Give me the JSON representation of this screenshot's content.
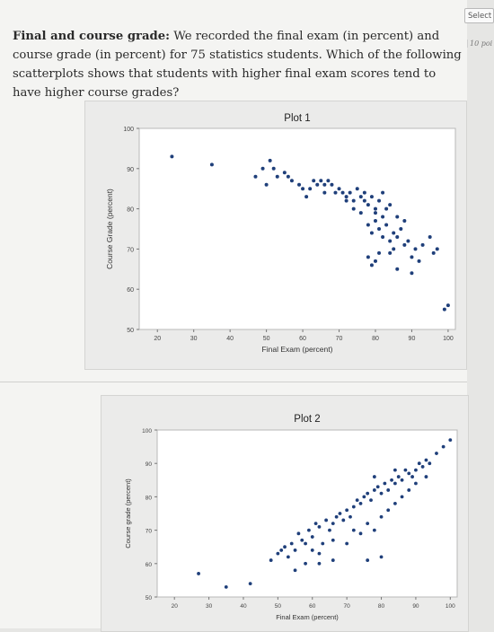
{
  "header": {
    "select_label": "Select",
    "points_label": "10 poi"
  },
  "question": {
    "title": "Final and course grade:",
    "text": "We recorded the final exam (in percent) and course grade (in percent) for 75 statistics students. Which of the following scatterplots shows that students with higher final exam scores tend to have higher course grades?"
  },
  "colors": {
    "point": "#1f3f7a",
    "plot_bg": "#ffffff",
    "panel_bg": "#ebebea"
  },
  "chart_data": [
    {
      "type": "scatter",
      "title": "Plot 1",
      "xlabel": "Final Exam (percent)",
      "ylabel": "Course Grade (percent)",
      "xlim": [
        15,
        102
      ],
      "ylim": [
        50,
        100
      ],
      "xticks": [
        20,
        30,
        40,
        50,
        60,
        70,
        80,
        90,
        100
      ],
      "yticks": [
        50,
        60,
        70,
        80,
        90,
        100
      ],
      "grid": false,
      "points": [
        [
          24,
          93
        ],
        [
          35,
          91
        ],
        [
          47,
          88
        ],
        [
          49,
          90
        ],
        [
          50,
          86
        ],
        [
          51,
          92
        ],
        [
          52,
          90
        ],
        [
          53,
          88
        ],
        [
          55,
          89
        ],
        [
          56,
          88
        ],
        [
          57,
          87
        ],
        [
          59,
          86
        ],
        [
          60,
          85
        ],
        [
          62,
          85
        ],
        [
          63,
          87
        ],
        [
          64,
          86
        ],
        [
          65,
          87
        ],
        [
          66,
          86
        ],
        [
          67,
          87
        ],
        [
          68,
          86
        ],
        [
          70,
          85
        ],
        [
          71,
          84
        ],
        [
          72,
          83
        ],
        [
          73,
          84
        ],
        [
          74,
          82
        ],
        [
          75,
          85
        ],
        [
          76,
          83
        ],
        [
          77,
          84
        ],
        [
          78,
          81
        ],
        [
          79,
          83
        ],
        [
          80,
          80
        ],
        [
          81,
          82
        ],
        [
          82,
          78
        ],
        [
          83,
          80
        ],
        [
          76,
          79
        ],
        [
          78,
          76
        ],
        [
          79,
          74
        ],
        [
          80,
          77
        ],
        [
          81,
          75
        ],
        [
          82,
          73
        ],
        [
          83,
          76
        ],
        [
          84,
          72
        ],
        [
          85,
          74
        ],
        [
          86,
          73
        ],
        [
          87,
          75
        ],
        [
          88,
          71
        ],
        [
          89,
          72
        ],
        [
          90,
          68
        ],
        [
          91,
          70
        ],
        [
          92,
          67
        ],
        [
          85,
          70
        ],
        [
          84,
          69
        ],
        [
          78,
          68
        ],
        [
          79,
          66
        ],
        [
          80,
          67
        ],
        [
          81,
          69
        ],
        [
          86,
          65
        ],
        [
          90,
          64
        ],
        [
          93,
          71
        ],
        [
          95,
          73
        ],
        [
          96,
          69
        ],
        [
          97,
          70
        ],
        [
          99,
          55
        ],
        [
          100,
          56
        ],
        [
          74,
          80
        ],
        [
          72,
          82
        ],
        [
          69,
          84
        ],
        [
          66,
          84
        ],
        [
          61,
          83
        ],
        [
          77,
          82
        ],
        [
          82,
          84
        ],
        [
          86,
          78
        ],
        [
          88,
          77
        ],
        [
          80,
          79
        ],
        [
          84,
          81
        ]
      ]
    },
    {
      "type": "scatter",
      "title": "Plot 2",
      "xlabel": "Final Exam (percent)",
      "ylabel": "Course grade (percent)",
      "xlim": [
        15,
        102
      ],
      "ylim": [
        50,
        100
      ],
      "xticks": [
        20,
        30,
        40,
        50,
        60,
        70,
        80,
        90,
        100
      ],
      "yticks": [
        50,
        60,
        70,
        80,
        90,
        100
      ],
      "grid": false,
      "points": [
        [
          27,
          57
        ],
        [
          35,
          53
        ],
        [
          42,
          54
        ],
        [
          48,
          61
        ],
        [
          50,
          63
        ],
        [
          51,
          64
        ],
        [
          52,
          65
        ],
        [
          53,
          62
        ],
        [
          54,
          66
        ],
        [
          55,
          64
        ],
        [
          56,
          69
        ],
        [
          57,
          67
        ],
        [
          58,
          66
        ],
        [
          59,
          70
        ],
        [
          60,
          68
        ],
        [
          61,
          72
        ],
        [
          62,
          71
        ],
        [
          63,
          66
        ],
        [
          64,
          73
        ],
        [
          65,
          70
        ],
        [
          66,
          72
        ],
        [
          67,
          74
        ],
        [
          68,
          75
        ],
        [
          69,
          73
        ],
        [
          70,
          76
        ],
        [
          71,
          74
        ],
        [
          72,
          77
        ],
        [
          73,
          79
        ],
        [
          74,
          78
        ],
        [
          75,
          80
        ],
        [
          76,
          81
        ],
        [
          77,
          79
        ],
        [
          78,
          82
        ],
        [
          79,
          83
        ],
        [
          80,
          81
        ],
        [
          81,
          84
        ],
        [
          82,
          82
        ],
        [
          83,
          85
        ],
        [
          84,
          84
        ],
        [
          85,
          86
        ],
        [
          86,
          85
        ],
        [
          87,
          88
        ],
        [
          88,
          87
        ],
        [
          89,
          86
        ],
        [
          90,
          88
        ],
        [
          91,
          90
        ],
        [
          92,
          89
        ],
        [
          93,
          91
        ],
        [
          94,
          90
        ],
        [
          96,
          93
        ],
        [
          98,
          95
        ],
        [
          100,
          97
        ],
        [
          60,
          64
        ],
        [
          62,
          63
        ],
        [
          66,
          67
        ],
        [
          70,
          66
        ],
        [
          72,
          70
        ],
        [
          74,
          69
        ],
        [
          76,
          72
        ],
        [
          78,
          70
        ],
        [
          80,
          74
        ],
        [
          82,
          76
        ],
        [
          84,
          78
        ],
        [
          86,
          80
        ],
        [
          88,
          82
        ],
        [
          76,
          61
        ],
        [
          80,
          62
        ],
        [
          62,
          60
        ],
        [
          55,
          58
        ],
        [
          58,
          60
        ],
        [
          66,
          61
        ],
        [
          90,
          84
        ],
        [
          84,
          88
        ],
        [
          78,
          86
        ],
        [
          93,
          86
        ]
      ]
    }
  ]
}
